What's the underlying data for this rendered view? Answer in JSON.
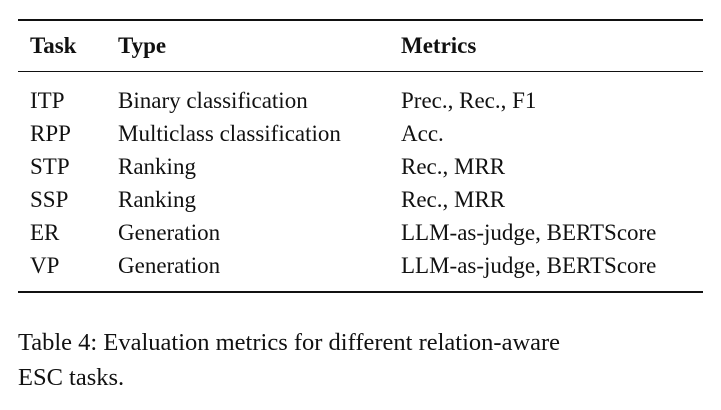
{
  "table": {
    "headers": {
      "task": "Task",
      "type": "Type",
      "metrics": "Metrics"
    },
    "rows": [
      {
        "task": "ITP",
        "type": "Binary classification",
        "metrics": "Prec., Rec., F1"
      },
      {
        "task": "RPP",
        "type": "Multiclass classification",
        "metrics": "Acc."
      },
      {
        "task": "STP",
        "type": "Ranking",
        "metrics": "Rec., MRR"
      },
      {
        "task": "SSP",
        "type": "Ranking",
        "metrics": "Rec., MRR"
      },
      {
        "task": "ER",
        "type": "Generation",
        "metrics": "LLM-as-judge, BERTScore"
      },
      {
        "task": "VP",
        "type": "Generation",
        "metrics": "LLM-as-judge, BERTScore"
      }
    ]
  },
  "caption": {
    "line1": "Table 4: Evaluation metrics for different relation-aware",
    "line2": "ESC tasks."
  }
}
